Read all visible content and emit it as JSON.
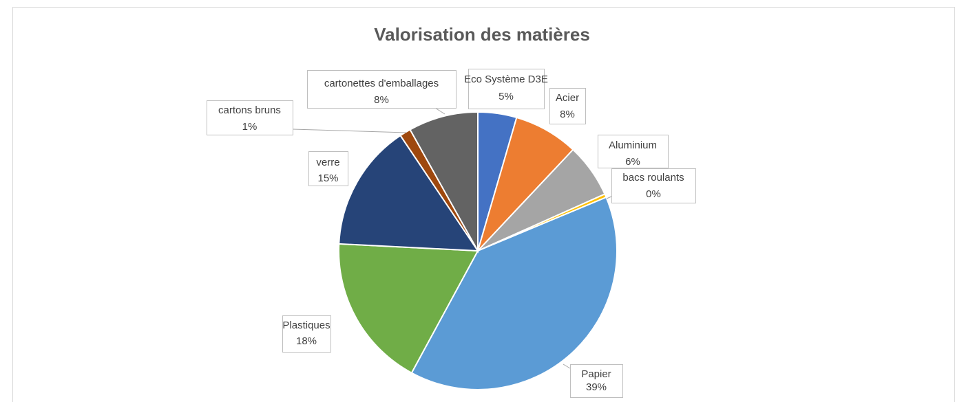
{
  "chart_data": {
    "type": "pie",
    "title": "Valorisation des matières",
    "categories": [
      "Eco Système D3E",
      "Acier",
      "Aluminium",
      "bacs roulants",
      "Papier",
      "Plastiques",
      "verre",
      "cartons bruns",
      "cartonettes d'emballages"
    ],
    "values": [
      4.5,
      7.5,
      6.3,
      0.4,
      39.2,
      17.9,
      14.8,
      1.3,
      8.1
    ],
    "value_labels": [
      "5%",
      "8%",
      "6%",
      "0%",
      "39%",
      "18%",
      "15%",
      "1%",
      "8%"
    ],
    "colors": [
      "#4472c4",
      "#ed7d31",
      "#a5a5a5",
      "#ffc000",
      "#5b9bd5",
      "#70ad47",
      "#264478",
      "#9e480e",
      "#636363"
    ]
  }
}
